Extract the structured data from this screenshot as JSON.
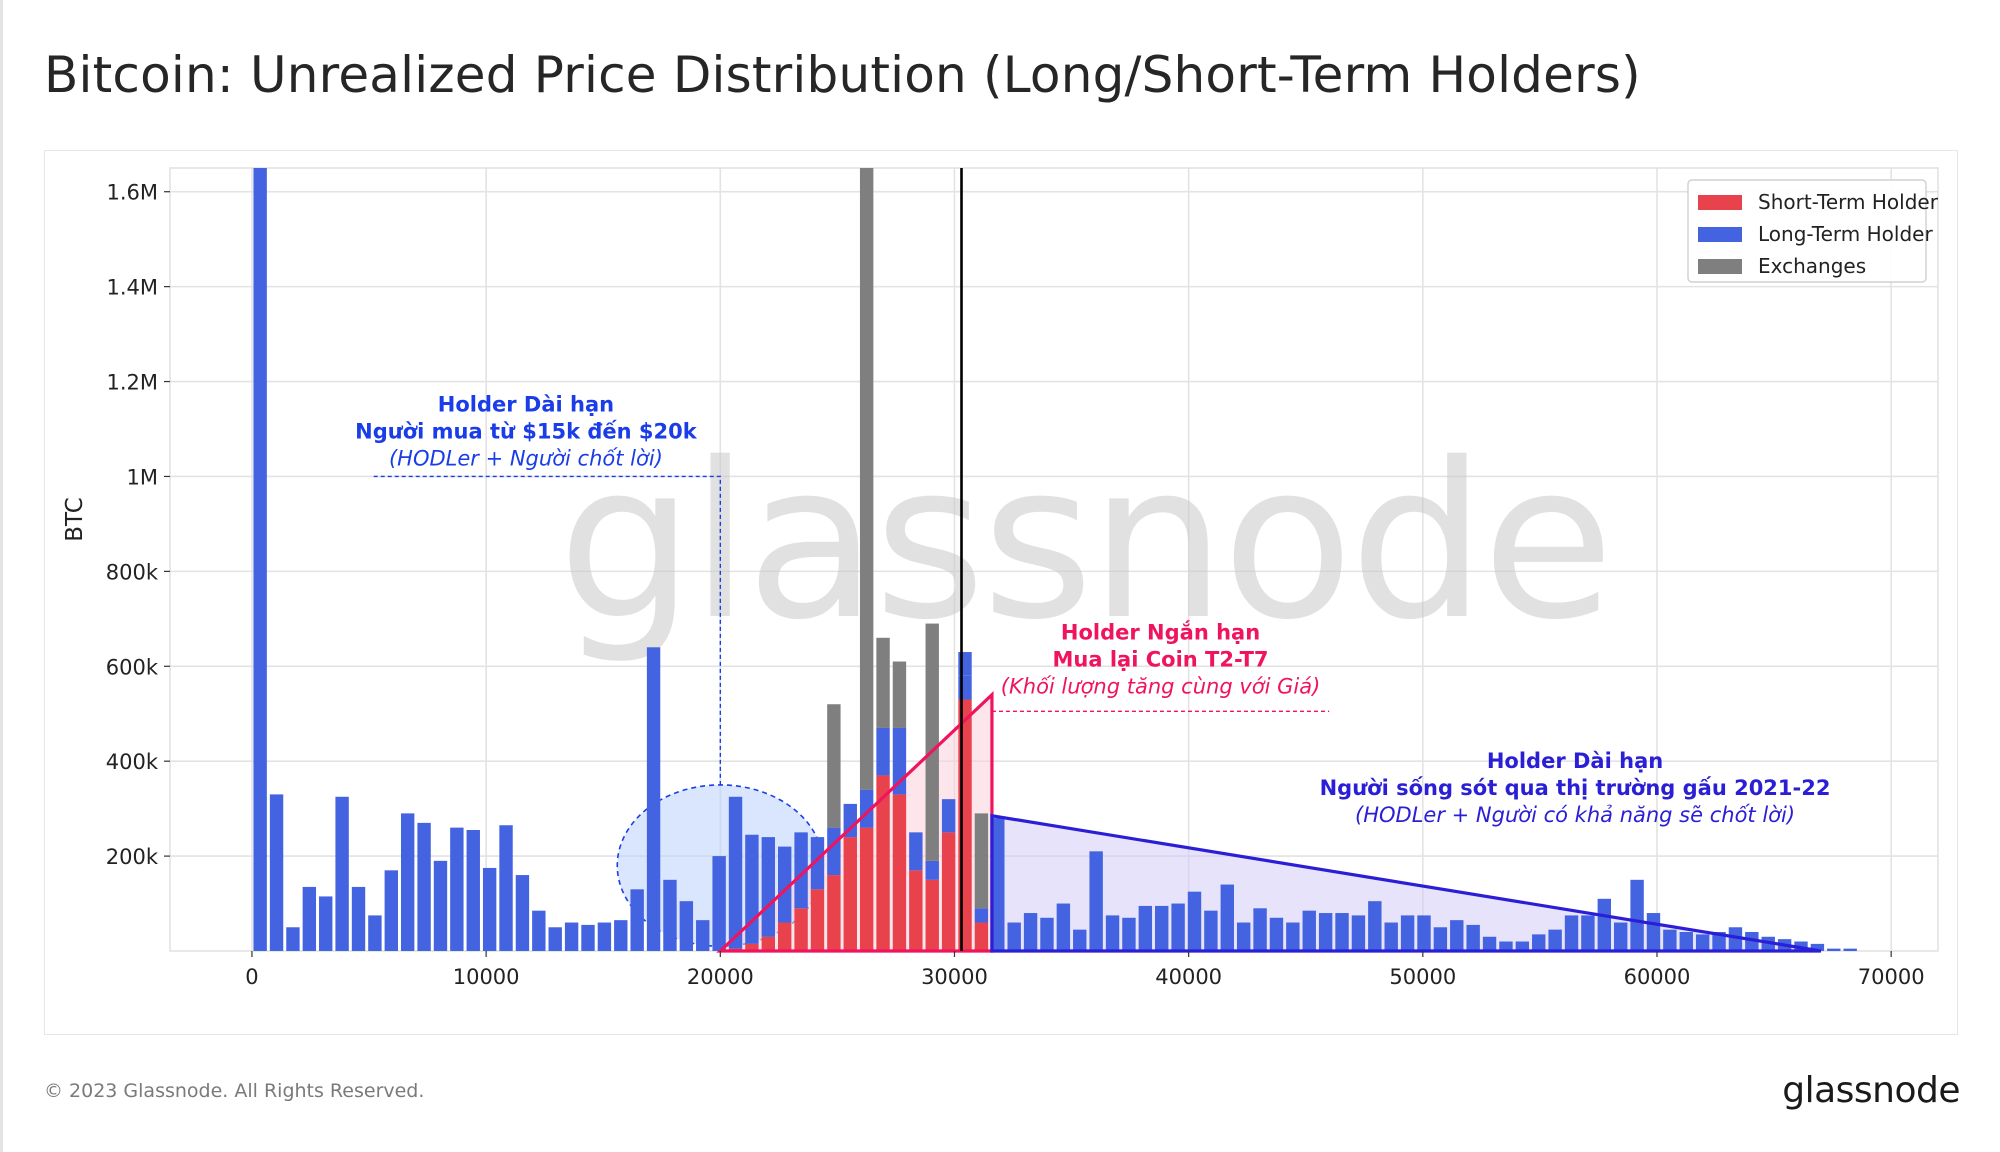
{
  "title": "Bitcoin: Unrealized Price Distribution (Long/Short-Term Holders)",
  "footer": {
    "copyright": "© 2023 Glassnode. All Rights Reserved.",
    "brand": "glassnode"
  },
  "watermark": "glassnode",
  "colors": {
    "short_term": "#e8424d",
    "long_term": "#4363e0",
    "exchanges": "#7f7f7f",
    "current_price_line": "#000000",
    "annotation_lth": "#1a3de8",
    "annotation_sth": "#f0145e",
    "annotation_lth_right": "#2a1ed6"
  },
  "chart_data": {
    "type": "bar",
    "stacked": true,
    "xlabel": "",
    "ylabel": "BTC",
    "xlim": [
      -3500,
      72000
    ],
    "ylim": [
      0,
      1650000
    ],
    "x_ticks": [
      0,
      10000,
      20000,
      30000,
      40000,
      50000,
      60000,
      70000
    ],
    "x_tick_labels": [
      "0",
      "10000",
      "20000",
      "30000",
      "40000",
      "50000",
      "60000",
      "70000"
    ],
    "y_ticks": [
      200000,
      400000,
      600000,
      800000,
      1000000,
      1200000,
      1400000,
      1600000
    ],
    "y_tick_labels": [
      "200k",
      "400k",
      "600k",
      "800k",
      "1M",
      "1.2M",
      "1.4M",
      "1.6M"
    ],
    "grid": true,
    "legend_position": "top-right",
    "bin_width": 700,
    "current_price": 30300,
    "x": [
      350,
      1050,
      1750,
      2450,
      3150,
      3850,
      4550,
      5250,
      5950,
      6650,
      7350,
      8050,
      8750,
      9450,
      10150,
      10850,
      11550,
      12250,
      12950,
      13650,
      14350,
      15050,
      15750,
      16450,
      17150,
      17850,
      18550,
      19250,
      19950,
      20650,
      21350,
      22050,
      22750,
      23450,
      24150,
      24850,
      25550,
      26250,
      26950,
      27650,
      28350,
      29050,
      29750,
      30450,
      31150,
      31850,
      32550,
      33250,
      33950,
      34650,
      35350,
      36050,
      36750,
      37450,
      38150,
      38850,
      39550,
      40250,
      40950,
      41650,
      42350,
      43050,
      43750,
      44450,
      45150,
      45850,
      46550,
      47250,
      47950,
      48650,
      49350,
      50050,
      50750,
      51450,
      52150,
      52850,
      53550,
      54250,
      54950,
      55650,
      56350,
      57050,
      57750,
      58450,
      59150,
      59850,
      60550,
      61250,
      61950,
      62650,
      63350,
      64050,
      64750,
      65450,
      66150,
      66850,
      67550,
      68250
    ],
    "series": [
      {
        "name": "Short-Term Holder",
        "values": [
          0,
          0,
          0,
          0,
          0,
          0,
          0,
          0,
          0,
          0,
          0,
          0,
          0,
          0,
          0,
          0,
          0,
          0,
          0,
          0,
          0,
          0,
          0,
          0,
          0,
          0,
          0,
          0,
          0,
          5000,
          15000,
          30000,
          60000,
          90000,
          130000,
          160000,
          240000,
          260000,
          370000,
          330000,
          170000,
          150000,
          250000,
          530000,
          60000,
          0,
          0,
          0,
          0,
          0,
          0,
          0,
          0,
          0,
          0,
          0,
          0,
          0,
          0,
          0,
          0,
          0,
          0,
          0,
          0,
          0,
          0,
          0,
          0,
          0,
          0,
          0,
          0,
          0,
          0,
          0,
          0,
          0,
          0,
          0,
          0,
          0,
          0,
          0,
          0,
          0,
          0,
          0,
          0,
          0,
          0,
          0,
          0,
          0,
          0,
          0,
          0,
          0
        ]
      },
      {
        "name": "Long-Term Holder",
        "values": [
          1650000,
          330000,
          50000,
          135000,
          115000,
          325000,
          135000,
          75000,
          170000,
          290000,
          270000,
          190000,
          260000,
          255000,
          175000,
          265000,
          160000,
          85000,
          50000,
          60000,
          55000,
          60000,
          65000,
          130000,
          640000,
          150000,
          105000,
          65000,
          200000,
          320000,
          230000,
          210000,
          160000,
          160000,
          110000,
          100000,
          70000,
          80000,
          100000,
          140000,
          80000,
          40000,
          70000,
          50000,
          30000,
          0,
          60000,
          80000,
          70000,
          100000,
          45000,
          210000,
          75000,
          70000,
          95000,
          95000,
          100000,
          125000,
          85000,
          140000,
          60000,
          90000,
          70000,
          60000,
          85000,
          80000,
          80000,
          75000,
          105000,
          60000,
          75000,
          75000,
          50000,
          65000,
          55000,
          30000,
          20000,
          20000,
          35000,
          45000,
          75000,
          75000,
          110000,
          60000,
          150000,
          80000,
          45000,
          40000,
          35000,
          40000,
          50000,
          40000,
          30000,
          25000,
          20000,
          15000,
          5000,
          5000
        ]
      },
      {
        "name": "Exchanges",
        "values": [
          0,
          0,
          0,
          0,
          0,
          0,
          0,
          0,
          0,
          0,
          0,
          0,
          0,
          0,
          0,
          0,
          0,
          0,
          0,
          0,
          0,
          0,
          0,
          0,
          0,
          0,
          0,
          0,
          0,
          0,
          0,
          0,
          0,
          0,
          0,
          260000,
          0,
          1310000,
          190000,
          140000,
          0,
          500000,
          0,
          0,
          0,
          0,
          0,
          0,
          0,
          0,
          0,
          0,
          0,
          0,
          0,
          0,
          0,
          0,
          0,
          0,
          0,
          0,
          0,
          0,
          0,
          0,
          0,
          0,
          0,
          0,
          0,
          0,
          0,
          0,
          0,
          0,
          0,
          0,
          0,
          0,
          0,
          0,
          0,
          0,
          0,
          0,
          0,
          0,
          0,
          0,
          0,
          0,
          0,
          0,
          0,
          0,
          0,
          0
        ]
      }
    ],
    "extra_bars": [
      {
        "x": 30450,
        "value": 50000,
        "series": "Long-Term Holder",
        "stack_on_current_total": true
      },
      {
        "x": 31150,
        "value": 200000,
        "series": "Exchanges",
        "stack_on_current_total": true
      },
      {
        "x": 31850,
        "value": 280000,
        "series": "Long-Term Holder"
      }
    ],
    "annotations": [
      {
        "id": "lth-left",
        "lines": [
          "Holder Dài hạn",
          "Người mua từ $15k đến $20k",
          "(HODLer + Người chốt lời)"
        ],
        "anchor_x": 20000,
        "anchor_y": 1000000,
        "ellipse_center": [
          20000,
          180000
        ],
        "ellipse_radius": [
          4400,
          170000
        ]
      },
      {
        "id": "sth",
        "lines": [
          "Holder Ngắn hạn",
          "Mua lại Coin T2-T7",
          "(Khối lượng tăng cùng với Giá)"
        ],
        "triangle": [
          [
            20000,
            0
          ],
          [
            31600,
            0
          ],
          [
            31600,
            540000
          ]
        ],
        "leader_y": 505000
      },
      {
        "id": "lth-right",
        "lines": [
          "Holder Dài hạn",
          "Người sống sót qua thị trường gấu 2021-22",
          "(HODLer + Người có khả năng sẽ chốt lời)"
        ],
        "triangle": [
          [
            31600,
            0
          ],
          [
            31600,
            285000
          ],
          [
            67000,
            0
          ]
        ]
      }
    ]
  }
}
